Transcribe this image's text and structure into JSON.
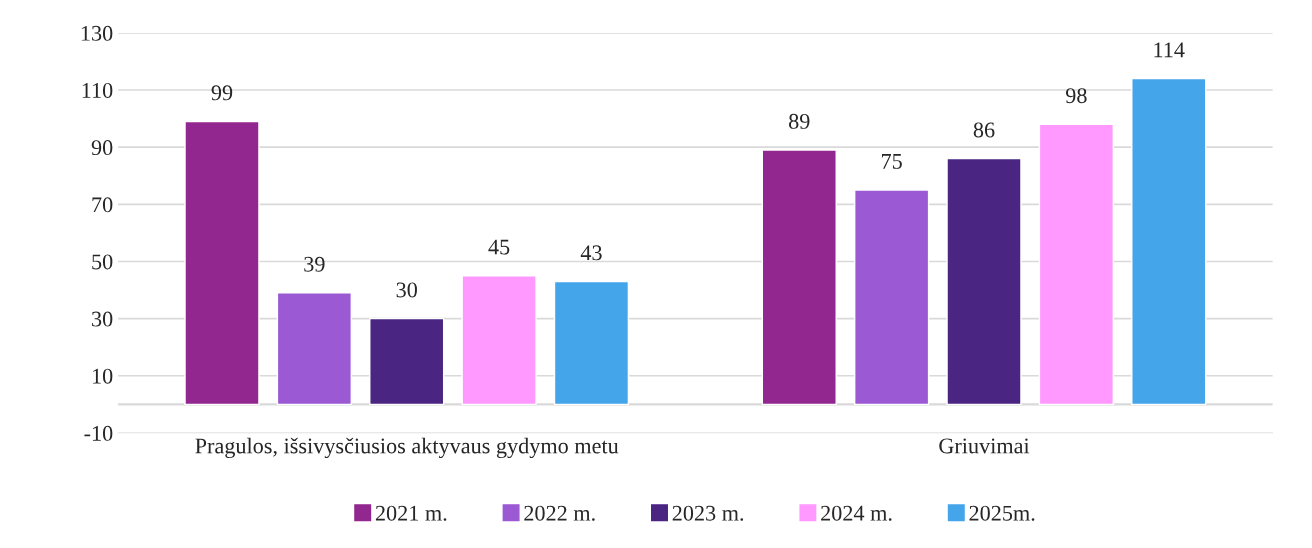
{
  "chart_data": {
    "type": "bar",
    "categories": [
      "Pragulos, išsivysčiusios aktyvaus gydymo metu",
      "Griuvimai"
    ],
    "series": [
      {
        "name": "2021 m.",
        "color": "#92278f",
        "values": [
          99,
          89
        ]
      },
      {
        "name": "2022 m.",
        "color": "#9b59d4",
        "values": [
          39,
          75
        ]
      },
      {
        "name": "2023 m.",
        "color": "#4a2582",
        "values": [
          30,
          86
        ]
      },
      {
        "name": "2024 m.",
        "color": "#ff99ff",
        "values": [
          45,
          98
        ]
      },
      {
        "name": "2025m.",
        "color": "#45a5ea",
        "values": [
          43,
          114
        ]
      }
    ],
    "ylim": [
      -10,
      130
    ],
    "yticks": [
      -10,
      10,
      30,
      50,
      70,
      90,
      110,
      130
    ],
    "grid": "y",
    "legend": "bottom",
    "data_labels": true
  }
}
